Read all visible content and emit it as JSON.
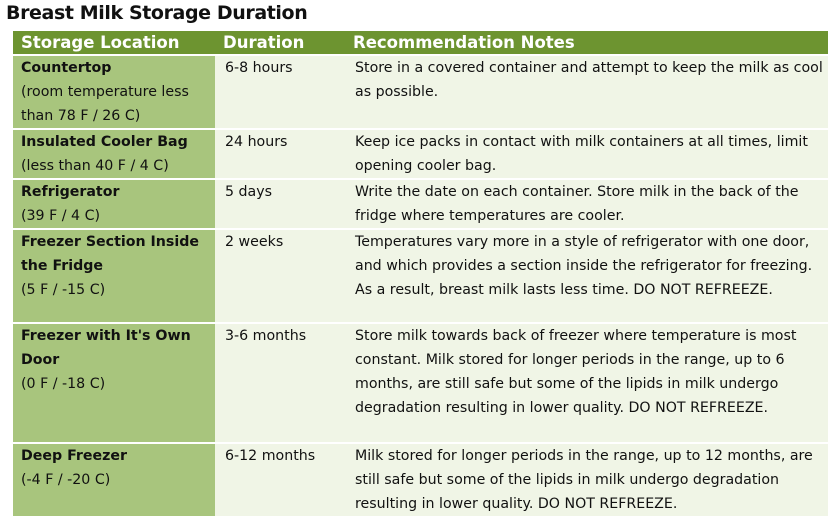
{
  "title": "Breast Milk Storage Duration",
  "columns": [
    "Storage Location",
    "Duration",
    "Recommendation Notes"
  ],
  "rows": [
    {
      "location": "Countertop",
      "condition": "(room temperature less than 78 F / 26 C)",
      "duration": "6-8 hours",
      "notes": "Store in a covered container and attempt to keep the milk as cool as possible."
    },
    {
      "location": "Insulated Cooler Bag",
      "condition": "(less than 40 F / 4 C)",
      "duration": "24 hours",
      "notes": "Keep ice packs in contact with milk containers at all times, limit opening cooler bag."
    },
    {
      "location": "Refrigerator",
      "condition": "(39 F / 4 C)",
      "duration": "5 days",
      "notes": "Write the date on each container. Store milk in the back of the fridge where temperatures are cooler."
    },
    {
      "location": "Freezer Section Inside the Fridge",
      "condition": "(5 F / -15 C)",
      "duration": "2 weeks",
      "notes": "Temperatures vary more in a style of refrigerator with one door, and which provides a section inside the refrigerator for freezing. As a result, breast milk lasts less time.  DO NOT REFREEZE."
    },
    {
      "location": "Freezer with It's Own Door",
      "condition": "(0 F / -18 C)",
      "duration": "3-6 months",
      "notes": "Store milk towards back of freezer where temperature is most constant. Milk stored for longer periods in the range, up to 6 months, are still safe but some of the lipids in milk undergo degradation resulting in lower quality. DO NOT REFREEZE."
    },
    {
      "location": "Deep Freezer",
      "condition": "(-4 F / -20 C)",
      "duration": "6-12 months",
      "notes": "Milk stored for longer periods in the range, up to 12 months, are still safe but some of the lipids in milk undergo degradation resulting in lower quality. DO NOT REFREEZE."
    }
  ]
}
